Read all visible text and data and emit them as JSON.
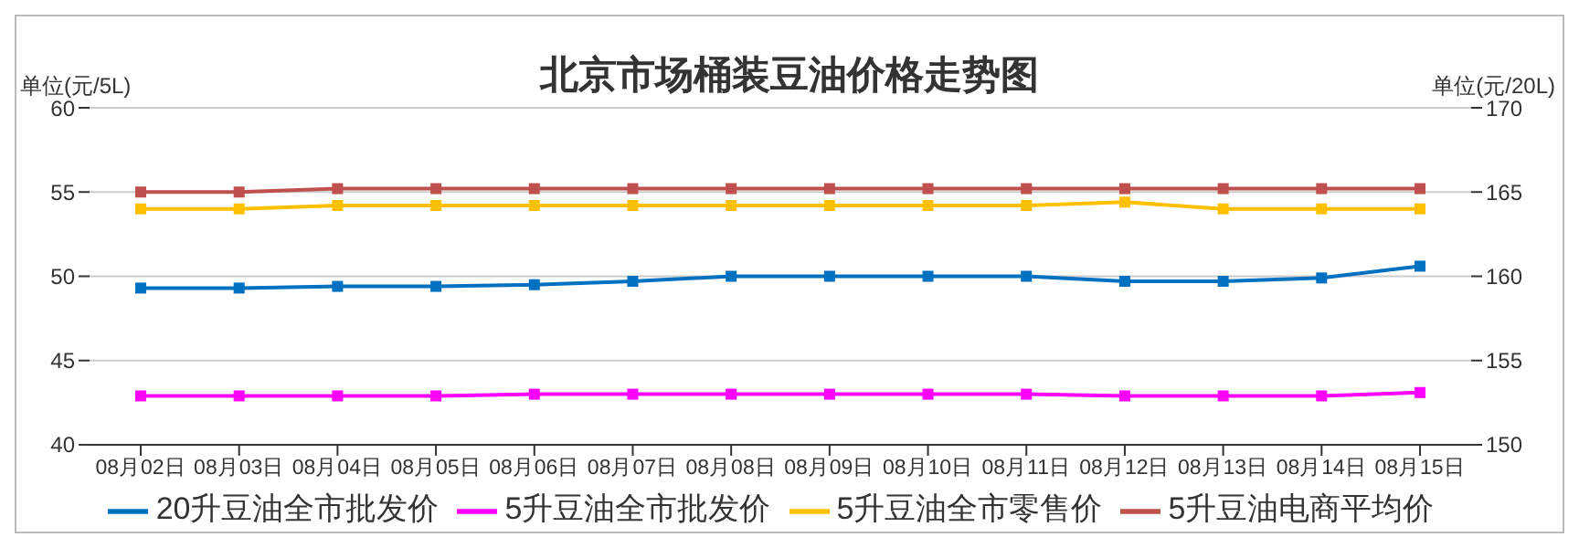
{
  "chart_data": {
    "type": "line",
    "title": "北京市场桶装豆油价格走势图",
    "ylabel": "单位(元/5L)",
    "y2label": "单位(元/20L)",
    "categories": [
      "08月02日",
      "08月03日",
      "08月04日",
      "08月05日",
      "08月06日",
      "08月07日",
      "08月08日",
      "08月09日",
      "08月10日",
      "08月11日",
      "08月12日",
      "08月13日",
      "08月14日",
      "08月15日"
    ],
    "series": [
      {
        "name": "20升豆油全市批发价",
        "color": "#0070c0",
        "axis": "y2",
        "values": [
          159.3,
          159.3,
          159.4,
          159.4,
          159.5,
          159.7,
          160,
          160,
          160,
          160,
          159.7,
          159.7,
          159.9,
          160.6
        ]
      },
      {
        "name": "5升豆油全市批发价",
        "color": "#ff00ff",
        "values": [
          42.9,
          42.9,
          42.9,
          42.9,
          43.0,
          43.0,
          43.0,
          43.0,
          43.0,
          43.0,
          42.9,
          42.9,
          42.9,
          43.1
        ]
      },
      {
        "name": "5升豆油全市零售价",
        "color": "#ffc000",
        "values": [
          54.0,
          54.0,
          54.2,
          54.2,
          54.2,
          54.2,
          54.2,
          54.2,
          54.2,
          54.2,
          54.4,
          54.0,
          54.0,
          54.0
        ]
      },
      {
        "name": "5升豆油电商平均价",
        "color": "#c0504d",
        "values": [
          55.0,
          55.0,
          55.2,
          55.2,
          55.2,
          55.2,
          55.2,
          55.2,
          55.2,
          55.2,
          55.2,
          55.2,
          55.2,
          55.2
        ]
      }
    ],
    "ylim": [
      40,
      60
    ],
    "yticks": [
      40,
      45,
      50,
      55,
      60
    ],
    "y2lim": [
      150,
      170
    ],
    "y2ticks": [
      150,
      155,
      160,
      165,
      170
    ],
    "grid": "y",
    "legend": "bottom",
    "marker": "square",
    "line_style": "solid"
  }
}
